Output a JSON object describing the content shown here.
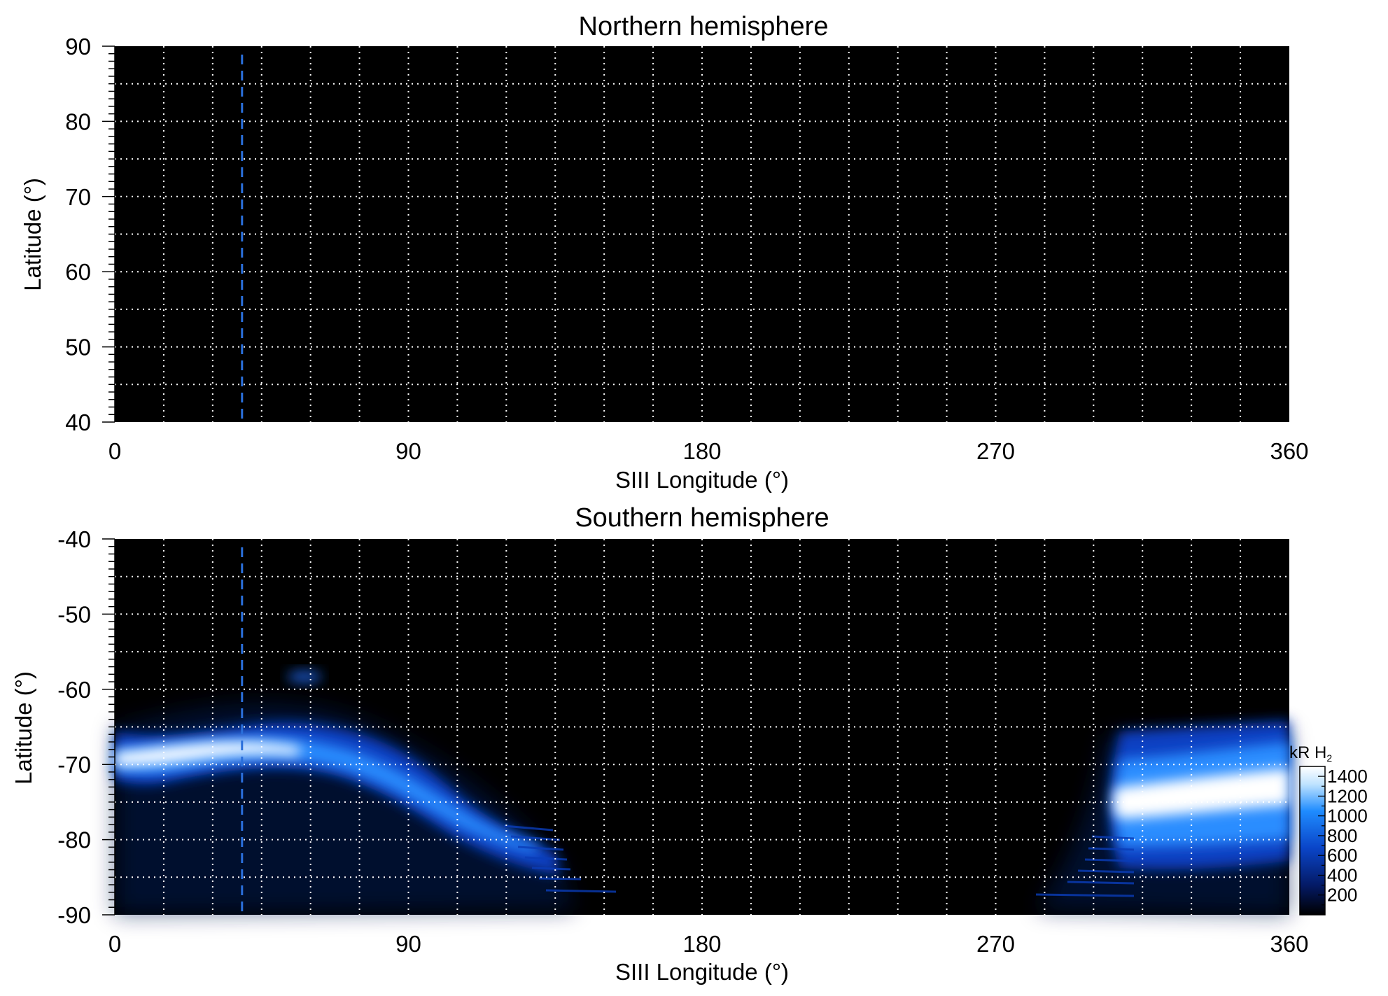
{
  "chart_data": [
    {
      "type": "heatmap",
      "title": "Northern hemisphere",
      "xlabel": "SIII Longitude (°)",
      "ylabel": "Latitude (°)",
      "xlim": [
        0,
        360
      ],
      "ylim": [
        40,
        90
      ],
      "xticks": [
        0,
        90,
        180,
        270,
        360
      ],
      "yticks": [
        40,
        50,
        60,
        70,
        80,
        90
      ],
      "grid": true,
      "grid_x_step": 15,
      "grid_y_step": 5,
      "background_color": "#000000",
      "grid_color": "#ffffff",
      "reference_line": {
        "x": 39,
        "style": "dashed",
        "color": "#2a6fdb"
      },
      "emission": []
    },
    {
      "type": "heatmap",
      "title": "Southern hemisphere",
      "xlabel": "SIII Longitude (°)",
      "ylabel": "Latitude (°)",
      "xlim": [
        0,
        360
      ],
      "ylim": [
        -90,
        -40
      ],
      "xticks": [
        0,
        90,
        180,
        270,
        360
      ],
      "yticks": [
        -40,
        -50,
        -60,
        -70,
        -80,
        -90
      ],
      "grid": true,
      "grid_x_step": 15,
      "grid_y_step": 5,
      "background_color": "#000000",
      "grid_color": "#ffffff",
      "reference_line": {
        "x": 39,
        "style": "dashed",
        "color": "#2a6fdb"
      },
      "emission": [
        {
          "feature": "main auroral oval (0-140°)",
          "center_lat": [
            [
              0,
              -73
            ],
            [
              15,
              -71.5
            ],
            [
              30,
              -70.5
            ],
            [
              45,
              -70
            ],
            [
              60,
              -71
            ],
            [
              75,
              -72.5
            ],
            [
              90,
              -75
            ],
            [
              105,
              -78
            ],
            [
              120,
              -80.5
            ],
            [
              135,
              -82
            ]
          ],
          "intensity_kR": [
            1300,
            1200,
            1050,
            900,
            800,
            700,
            600,
            550,
            500,
            400
          ]
        },
        {
          "feature": "main auroral oval (300-360°)",
          "center_lat": [
            [
              305,
              -76
            ],
            [
              320,
              -75
            ],
            [
              340,
              -74
            ],
            [
              360,
              -72
            ]
          ],
          "intensity_kR": [
            1400,
            1400,
            1300,
            1300
          ]
        },
        {
          "feature": "isolated spot",
          "lon": 58,
          "lat": -58.5,
          "intensity_kR": 300
        }
      ]
    }
  ],
  "colorbar": {
    "label": "kR H",
    "label_subscript": "2",
    "ticks": [
      200,
      400,
      600,
      800,
      1000,
      1200,
      1400
    ],
    "range": [
      0,
      1500
    ],
    "colormap": [
      "#000000",
      "#041a66",
      "#0a45c8",
      "#1f8cff",
      "#bfe3ff",
      "#ffffff"
    ]
  }
}
